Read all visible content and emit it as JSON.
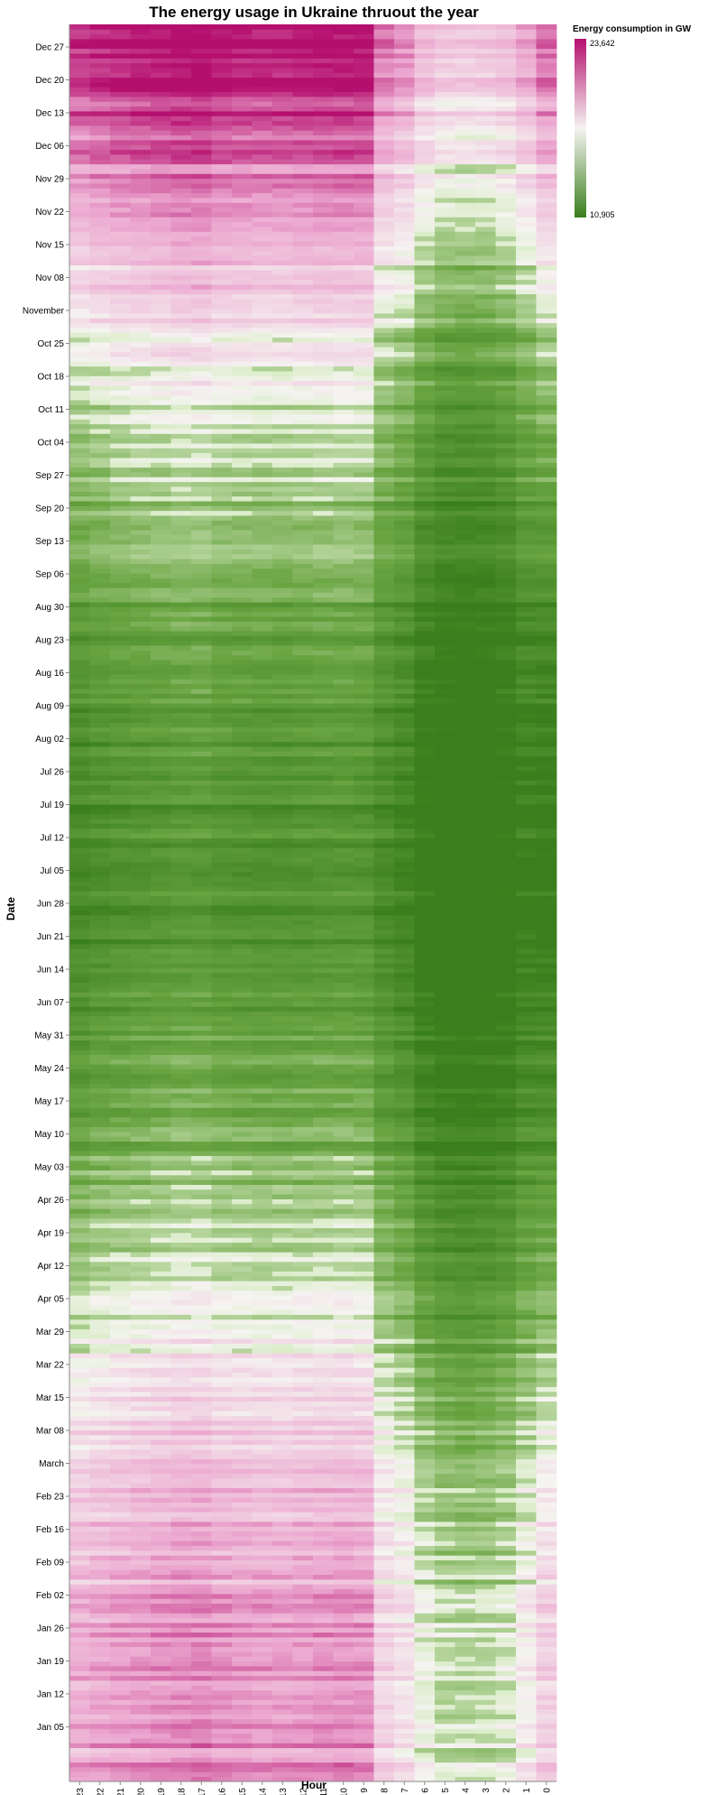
{
  "chart_data": {
    "type": "heatmap",
    "title": "The energy usage in Ukraine thruout the year",
    "xlabel": "Hour",
    "ylabel": "Date",
    "x_categories": [
      "23",
      "22",
      "21",
      "20",
      "19",
      "18",
      "17",
      "16",
      "15",
      "14",
      "13",
      "12",
      "11",
      "10",
      "9",
      "8",
      "7",
      "6",
      "5",
      "4",
      "3",
      "2",
      "1",
      "0"
    ],
    "y_ticks": [
      "Dec 27",
      "Dec 20",
      "Dec 13",
      "Dec 06",
      "Nov 29",
      "Nov 22",
      "Nov 15",
      "Nov 08",
      "November",
      "Oct 25",
      "Oct 18",
      "Oct 11",
      "Oct 04",
      "Sep 27",
      "Sep 20",
      "Sep 13",
      "Sep 06",
      "Aug 30",
      "Aug 23",
      "Aug 16",
      "Aug 09",
      "Aug 02",
      "Jul 26",
      "Jul 19",
      "Jul 12",
      "Jul 05",
      "Jun 28",
      "Jun 21",
      "Jun 14",
      "Jun 07",
      "May 31",
      "May 24",
      "May 17",
      "May 10",
      "May 03",
      "Apr 26",
      "Apr 19",
      "Apr 12",
      "Apr 05",
      "Mar 29",
      "Mar 22",
      "Mar 15",
      "Mar 08",
      "March",
      "Feb 23",
      "Feb 16",
      "Feb 09",
      "Feb 02",
      "Jan 26",
      "Jan 19",
      "Jan 12",
      "Jan 05"
    ],
    "legend": {
      "title": "Energy consumption in GW",
      "min_label": "10,905",
      "max_label": "23,642",
      "min": 10905,
      "max": 23642,
      "placement": "top-right"
    },
    "grid": false,
    "colors": {
      "low": "#3a7f1d",
      "mid": "#f5f4f1",
      "high": "#b50f6e"
    }
  }
}
